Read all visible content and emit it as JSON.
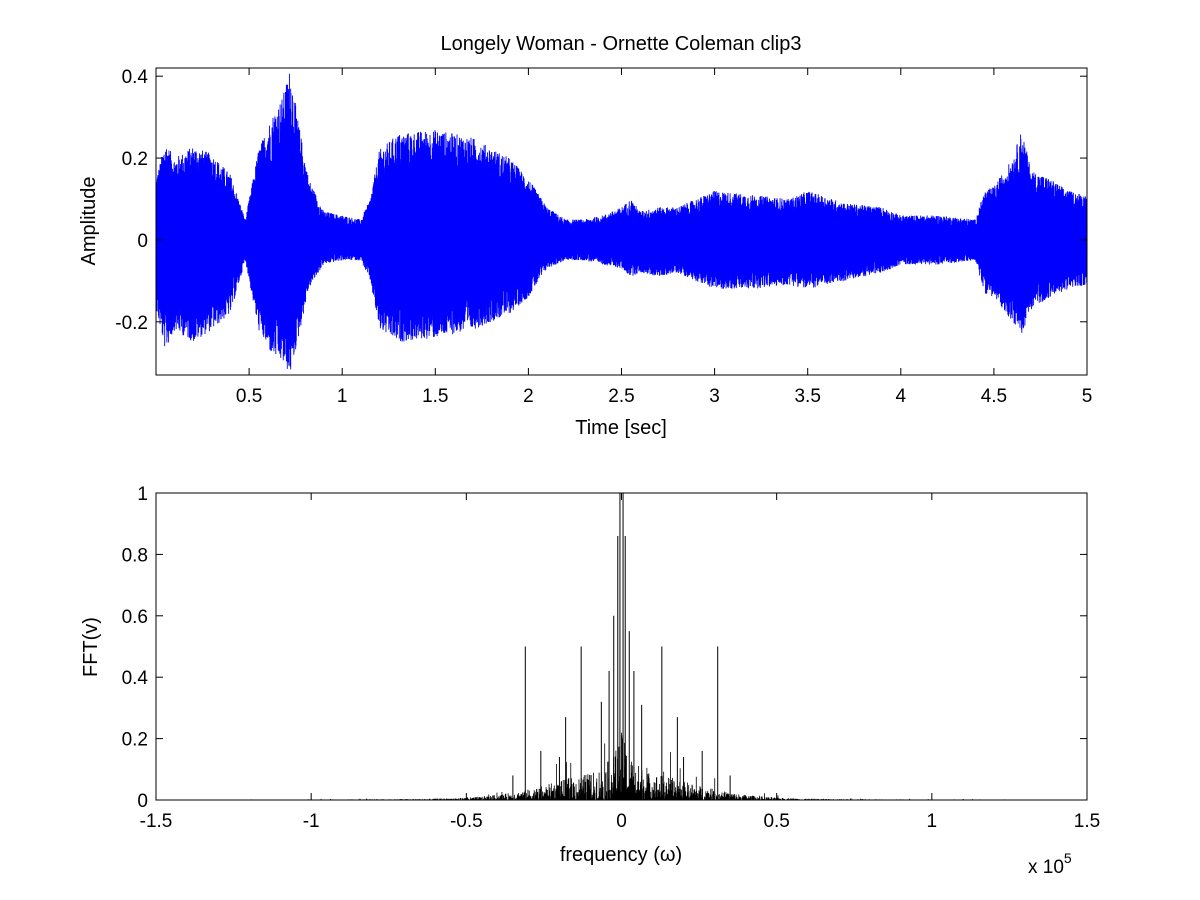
{
  "chart_data": [
    {
      "type": "line",
      "title": "Longely Woman - Ornette Coleman clip3",
      "xlabel": "Time [sec]",
      "ylabel": "Amplitude",
      "xlim": [
        0,
        5
      ],
      "ylim": [
        -0.33,
        0.42
      ],
      "xticks": [
        0.5,
        1,
        1.5,
        2,
        2.5,
        3,
        3.5,
        4,
        4.5,
        5
      ],
      "xtick_labels": [
        "0.5",
        "1",
        "1.5",
        "2",
        "2.5",
        "3",
        "3.5",
        "4",
        "4.5",
        "5"
      ],
      "yticks": [
        -0.2,
        0,
        0.2,
        0.4
      ],
      "ytick_labels": [
        "-0.2",
        "0",
        "0.2",
        "0.4"
      ],
      "grid": false,
      "series_color": "#0000ff",
      "envelope": {
        "x": [
          0.0,
          0.05,
          0.1,
          0.2,
          0.3,
          0.4,
          0.48,
          0.55,
          0.62,
          0.68,
          0.72,
          0.76,
          0.82,
          0.9,
          1.0,
          1.1,
          1.15,
          1.2,
          1.3,
          1.5,
          1.7,
          1.9,
          2.0,
          2.1,
          2.2,
          2.3,
          2.4,
          2.5,
          2.55,
          2.6,
          2.7,
          2.8,
          3.0,
          3.2,
          3.4,
          3.5,
          3.7,
          3.9,
          4.0,
          4.2,
          4.4,
          4.45,
          4.5,
          4.6,
          4.65,
          4.7,
          4.8,
          4.9,
          5.0
        ],
        "upper": [
          0.15,
          0.24,
          0.2,
          0.23,
          0.21,
          0.16,
          0.05,
          0.22,
          0.3,
          0.35,
          0.42,
          0.3,
          0.15,
          0.07,
          0.06,
          0.05,
          0.1,
          0.22,
          0.26,
          0.27,
          0.25,
          0.2,
          0.15,
          0.08,
          0.05,
          0.05,
          0.06,
          0.08,
          0.1,
          0.07,
          0.08,
          0.08,
          0.12,
          0.11,
          0.1,
          0.12,
          0.09,
          0.08,
          0.06,
          0.06,
          0.05,
          0.12,
          0.13,
          0.2,
          0.27,
          0.17,
          0.15,
          0.12,
          0.11
        ],
        "lower": [
          -0.17,
          -0.27,
          -0.22,
          -0.25,
          -0.22,
          -0.18,
          -0.05,
          -0.22,
          -0.28,
          -0.3,
          -0.33,
          -0.25,
          -0.12,
          -0.06,
          -0.05,
          -0.05,
          -0.1,
          -0.22,
          -0.25,
          -0.24,
          -0.22,
          -0.18,
          -0.14,
          -0.07,
          -0.05,
          -0.05,
          -0.06,
          -0.07,
          -0.09,
          -0.08,
          -0.09,
          -0.08,
          -0.12,
          -0.12,
          -0.11,
          -0.12,
          -0.1,
          -0.08,
          -0.06,
          -0.06,
          -0.05,
          -0.13,
          -0.14,
          -0.2,
          -0.23,
          -0.17,
          -0.14,
          -0.12,
          -0.11
        ]
      }
    },
    {
      "type": "line",
      "title": "",
      "xlabel": "frequency (ω)",
      "ylabel": "FFT(v)",
      "x_exponent_label": "x 10",
      "x_exponent_power": "5",
      "xlim": [
        -1.5,
        1.5
      ],
      "ylim": [
        0,
        1
      ],
      "xticks": [
        -1.5,
        -1,
        -0.5,
        0,
        0.5,
        1,
        1.5
      ],
      "xtick_labels": [
        "-1.5",
        "-1",
        "-0.5",
        "0",
        "0.5",
        "1",
        "1.5"
      ],
      "yticks": [
        0,
        0.2,
        0.4,
        0.6,
        0.8,
        1
      ],
      "ytick_labels": [
        "0",
        "0.2",
        "0.4",
        "0.6",
        "0.8",
        "1"
      ],
      "grid": false,
      "series_color": "#000000",
      "x_extent": [
        -1.38,
        1.38
      ],
      "peaks": [
        {
          "x": -0.005,
          "y": 1.0
        },
        {
          "x": 0.005,
          "y": 1.0
        },
        {
          "x": -0.012,
          "y": 0.86
        },
        {
          "x": 0.012,
          "y": 0.86
        },
        {
          "x": -0.025,
          "y": 0.6
        },
        {
          "x": 0.025,
          "y": 0.55
        },
        {
          "x": -0.04,
          "y": 0.42
        },
        {
          "x": 0.04,
          "y": 0.42
        },
        {
          "x": -0.065,
          "y": 0.32
        },
        {
          "x": 0.065,
          "y": 0.31
        },
        {
          "x": -0.13,
          "y": 0.5
        },
        {
          "x": 0.13,
          "y": 0.5
        },
        {
          "x": -0.18,
          "y": 0.27
        },
        {
          "x": 0.18,
          "y": 0.27
        },
        {
          "x": -0.31,
          "y": 0.5
        },
        {
          "x": 0.31,
          "y": 0.5
        },
        {
          "x": -0.2,
          "y": 0.14
        },
        {
          "x": 0.2,
          "y": 0.14
        },
        {
          "x": -0.26,
          "y": 0.16
        },
        {
          "x": 0.26,
          "y": 0.16
        },
        {
          "x": -0.35,
          "y": 0.08
        },
        {
          "x": 0.35,
          "y": 0.08
        }
      ]
    }
  ]
}
